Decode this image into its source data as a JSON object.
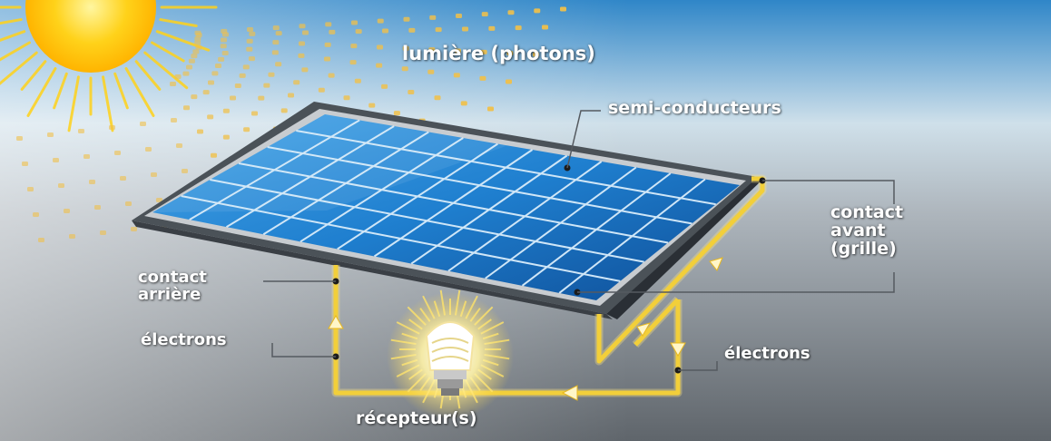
{
  "labels": {
    "light": "lumière (photons)",
    "semiconductors": "semi-conducteurs",
    "front_contact": "contact\navant\n(grille)",
    "back_contact": "contact\narrière",
    "electrons_left": "électrons",
    "electrons_right": "électrons",
    "receiver": "récepteur(s)"
  },
  "icons": [
    "sun-icon",
    "photon-icon",
    "solar-panel",
    "light-bulb-icon",
    "current-arrow-icon"
  ],
  "colors": {
    "sky_top": "#2f86c8",
    "sky_mid": "#cfe0ea",
    "ground": "#6f747a",
    "sun": "#ffd21a",
    "photon": "#f0c04a",
    "wire": "#f2d04a",
    "panel_cell": "#1e7fd0",
    "panel_frame": "#c8ccd0",
    "label": "#ffffff"
  }
}
